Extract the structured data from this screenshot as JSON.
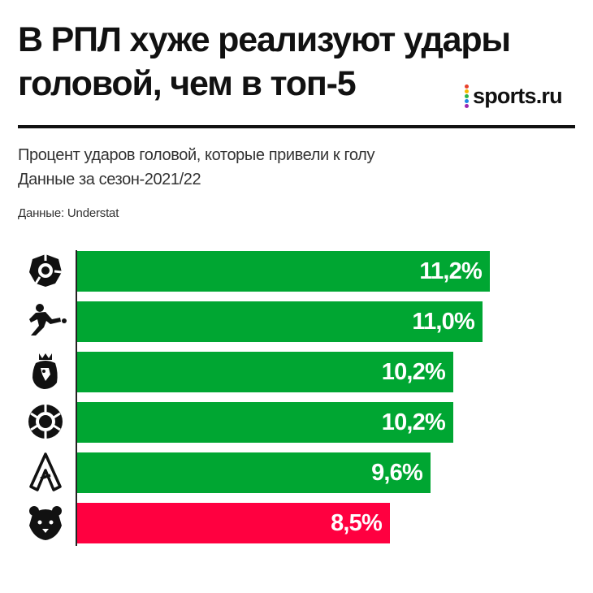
{
  "header": {
    "title_line1": "В РПЛ хуже реализуют удары",
    "title_line2": "головой, чем в топ-5",
    "brand": "sports.ru"
  },
  "subtitle": {
    "line1": "Процент ударов головой, которые привели к голу",
    "line2": "Данные за сезон-2021/22"
  },
  "source": "Данные: Understat",
  "colors": {
    "bar_default": "#00a632",
    "bar_highlight": "#ff0040",
    "brand_dots": [
      "#e8412c",
      "#f6b800",
      "#2db34a",
      "#1e88e5",
      "#9c27b0"
    ]
  },
  "chart_data": {
    "type": "bar",
    "orientation": "horizontal",
    "title": "В РПЛ хуже реализуют удары головой, чем в топ-5",
    "subtitle": "Процент ударов головой, которые привели к голу",
    "categories": [
      "ligue1-logo",
      "bundesliga-logo",
      "premier-league-logo",
      "laliga-logo",
      "serie-a-logo",
      "rpl-logo"
    ],
    "values": [
      11.2,
      11.0,
      10.2,
      10.2,
      9.6,
      8.5
    ],
    "labels": [
      "11,2%",
      "11,0%",
      "10,2%",
      "10,2%",
      "9,6%",
      "8,5%"
    ],
    "highlight_index": 5,
    "xlim": [
      0,
      12.9
    ],
    "grid": false,
    "legend": "none"
  }
}
